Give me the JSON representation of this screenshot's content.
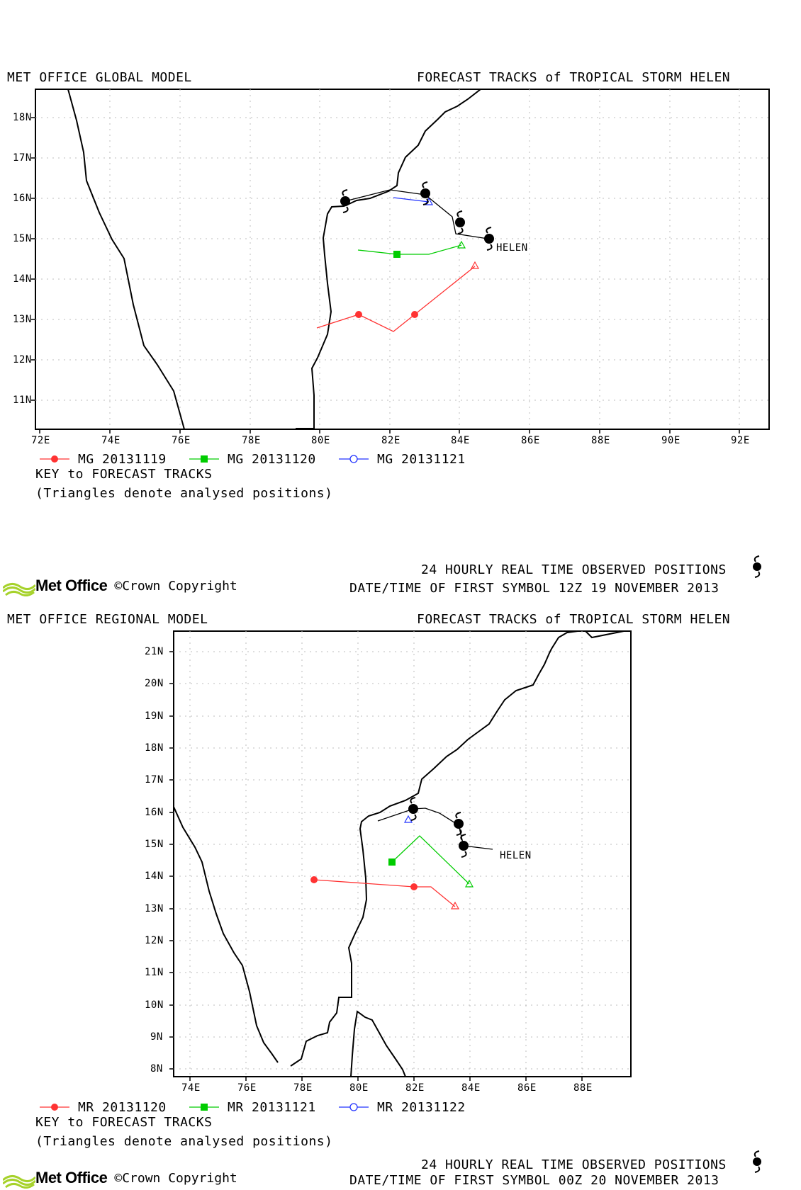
{
  "panel1": {
    "model_title": "MET OFFICE GLOBAL MODEL",
    "forecast_title": "FORECAST TRACKS of TROPICAL STORM HELEN",
    "storm_label": "HELEN",
    "x_ticks": [
      "72E",
      "74E",
      "76E",
      "78E",
      "80E",
      "82E",
      "84E",
      "86E",
      "88E",
      "90E",
      "92E"
    ],
    "y_ticks": [
      "11N",
      "12N",
      "13N",
      "14N",
      "15N",
      "16N",
      "17N",
      "18N"
    ],
    "legend": [
      "MG 20131119",
      "MG 20131120",
      "MG 20131121"
    ],
    "key_title": "KEY to FORECAST TRACKS",
    "key_note": "(Triangles denote analysed positions)",
    "observed_title": "24 HOURLY REAL TIME OBSERVED POSITIONS",
    "first_symbol": "DATE/TIME OF FIRST SYMBOL 12Z 19 NOVEMBER 2013"
  },
  "panel2": {
    "model_title": "MET OFFICE REGIONAL MODEL",
    "forecast_title": "FORECAST TRACKS of TROPICAL STORM HELEN",
    "storm_label": "HELEN",
    "x_ticks": [
      "74E",
      "76E",
      "78E",
      "80E",
      "82E",
      "84E",
      "86E",
      "88E"
    ],
    "y_ticks": [
      "8N",
      "9N",
      "10N",
      "11N",
      "12N",
      "13N",
      "14N",
      "15N",
      "16N",
      "17N",
      "18N",
      "19N",
      "20N",
      "21N"
    ],
    "legend": [
      "MR 20131120",
      "MR 20131121",
      "MR 20131122"
    ],
    "key_title": "KEY to FORECAST TRACKS",
    "key_note": "(Triangles denote analysed positions)",
    "observed_title": "24 HOURLY REAL TIME OBSERVED POSITIONS",
    "first_symbol": "DATE/TIME OF FIRST SYMBOL 00Z 20 NOVEMBER 2013"
  },
  "branding": {
    "logo_text": "Met Office",
    "copyright": "©Crown Copyright"
  },
  "colors": {
    "red": "#ff3333",
    "green": "#00cc00",
    "blue": "#2233ff",
    "grid": "#bdbdbd",
    "logo_green": "#a6d22b"
  }
}
